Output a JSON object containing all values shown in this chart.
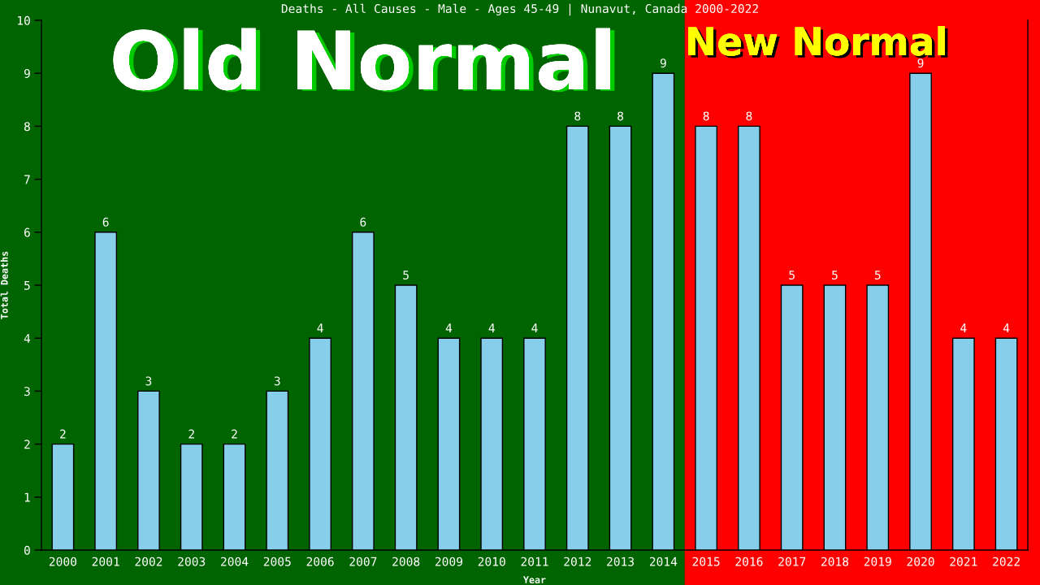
{
  "chart_data": {
    "type": "bar",
    "title": "Deaths - All Causes - Male - Ages 45-49 | Nunavut, Canada 2000-2022",
    "xlabel": "Year",
    "ylabel": "Total Deaths",
    "categories": [
      "2000",
      "2001",
      "2002",
      "2003",
      "2004",
      "2005",
      "2006",
      "2007",
      "2008",
      "2009",
      "2010",
      "2011",
      "2012",
      "2013",
      "2014",
      "2015",
      "2016",
      "2017",
      "2018",
      "2019",
      "2020",
      "2021",
      "2022"
    ],
    "series": [
      {
        "color": "#87ceeb",
        "values": [
          2,
          6,
          3,
          2,
          2,
          3,
          4,
          6,
          5,
          4,
          4,
          4,
          8,
          8,
          9,
          8,
          8,
          5,
          5,
          5,
          9,
          4,
          4
        ]
      }
    ],
    "ylim": [
      0,
      10
    ],
    "yticks": [
      0,
      1,
      2,
      3,
      4,
      5,
      6,
      7,
      8,
      9,
      10
    ],
    "data_labels": true,
    "bands": [
      {
        "axis": "x",
        "from": "2000",
        "to": "2014",
        "label": "Old Normal",
        "color": "#006400"
      },
      {
        "axis": "x",
        "from": "2015",
        "to": "2022",
        "label": "New Normal",
        "color": "#ff0000"
      }
    ]
  }
}
